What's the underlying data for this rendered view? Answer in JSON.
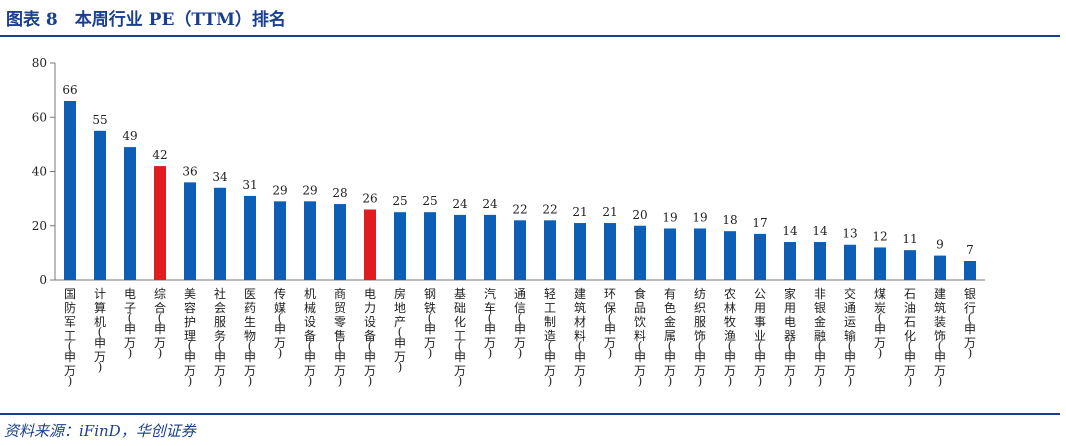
{
  "figure": {
    "title": "图表 8　本周行业 PE（TTM）排名",
    "source": "资料来源：iFinD，华创证券"
  },
  "colors": {
    "accent": "#1a3f8f",
    "bar": "#0d5fb5",
    "highlight": "#e11b22"
  },
  "chart_data": {
    "type": "bar",
    "categories": [
      "国防军工(申万)",
      "计算机(申万)",
      "电子(申万)",
      "综合(申万)",
      "美容护理(申万)",
      "社会服务(申万)",
      "医药生物(申万)",
      "传媒(申万)",
      "机械设备(申万)",
      "商贸零售(申万)",
      "电力设备(申万)",
      "房地产(申万)",
      "钢铁(申万)",
      "基础化工(申万)",
      "汽车(申万)",
      "通信(申万)",
      "轻工制造(申万)",
      "建筑材料(申万)",
      "环保(申万)",
      "食品饮料(申万)",
      "有色金属(申万)",
      "纺织服饰(申万)",
      "农林牧渔(申万)",
      "公用事业(申万)",
      "家用电器(申万)",
      "非银金融(申万)",
      "交通运输(申万)",
      "煤炭(申万)",
      "石油石化(申万)",
      "建筑装饰(申万)",
      "银行(申万)"
    ],
    "values": [
      66,
      55,
      49,
      42,
      36,
      34,
      31,
      29,
      29,
      28,
      26,
      25,
      25,
      24,
      24,
      22,
      22,
      21,
      21,
      20,
      19,
      19,
      18,
      17,
      14,
      14,
      13,
      12,
      11,
      9,
      7
    ],
    "highlighted": [
      "综合(申万)",
      "电力设备(申万)"
    ],
    "ylim": [
      0,
      80
    ],
    "yticks": [
      0,
      20,
      40,
      60,
      80
    ],
    "data_labels": true,
    "grid": false,
    "legend": "none"
  }
}
